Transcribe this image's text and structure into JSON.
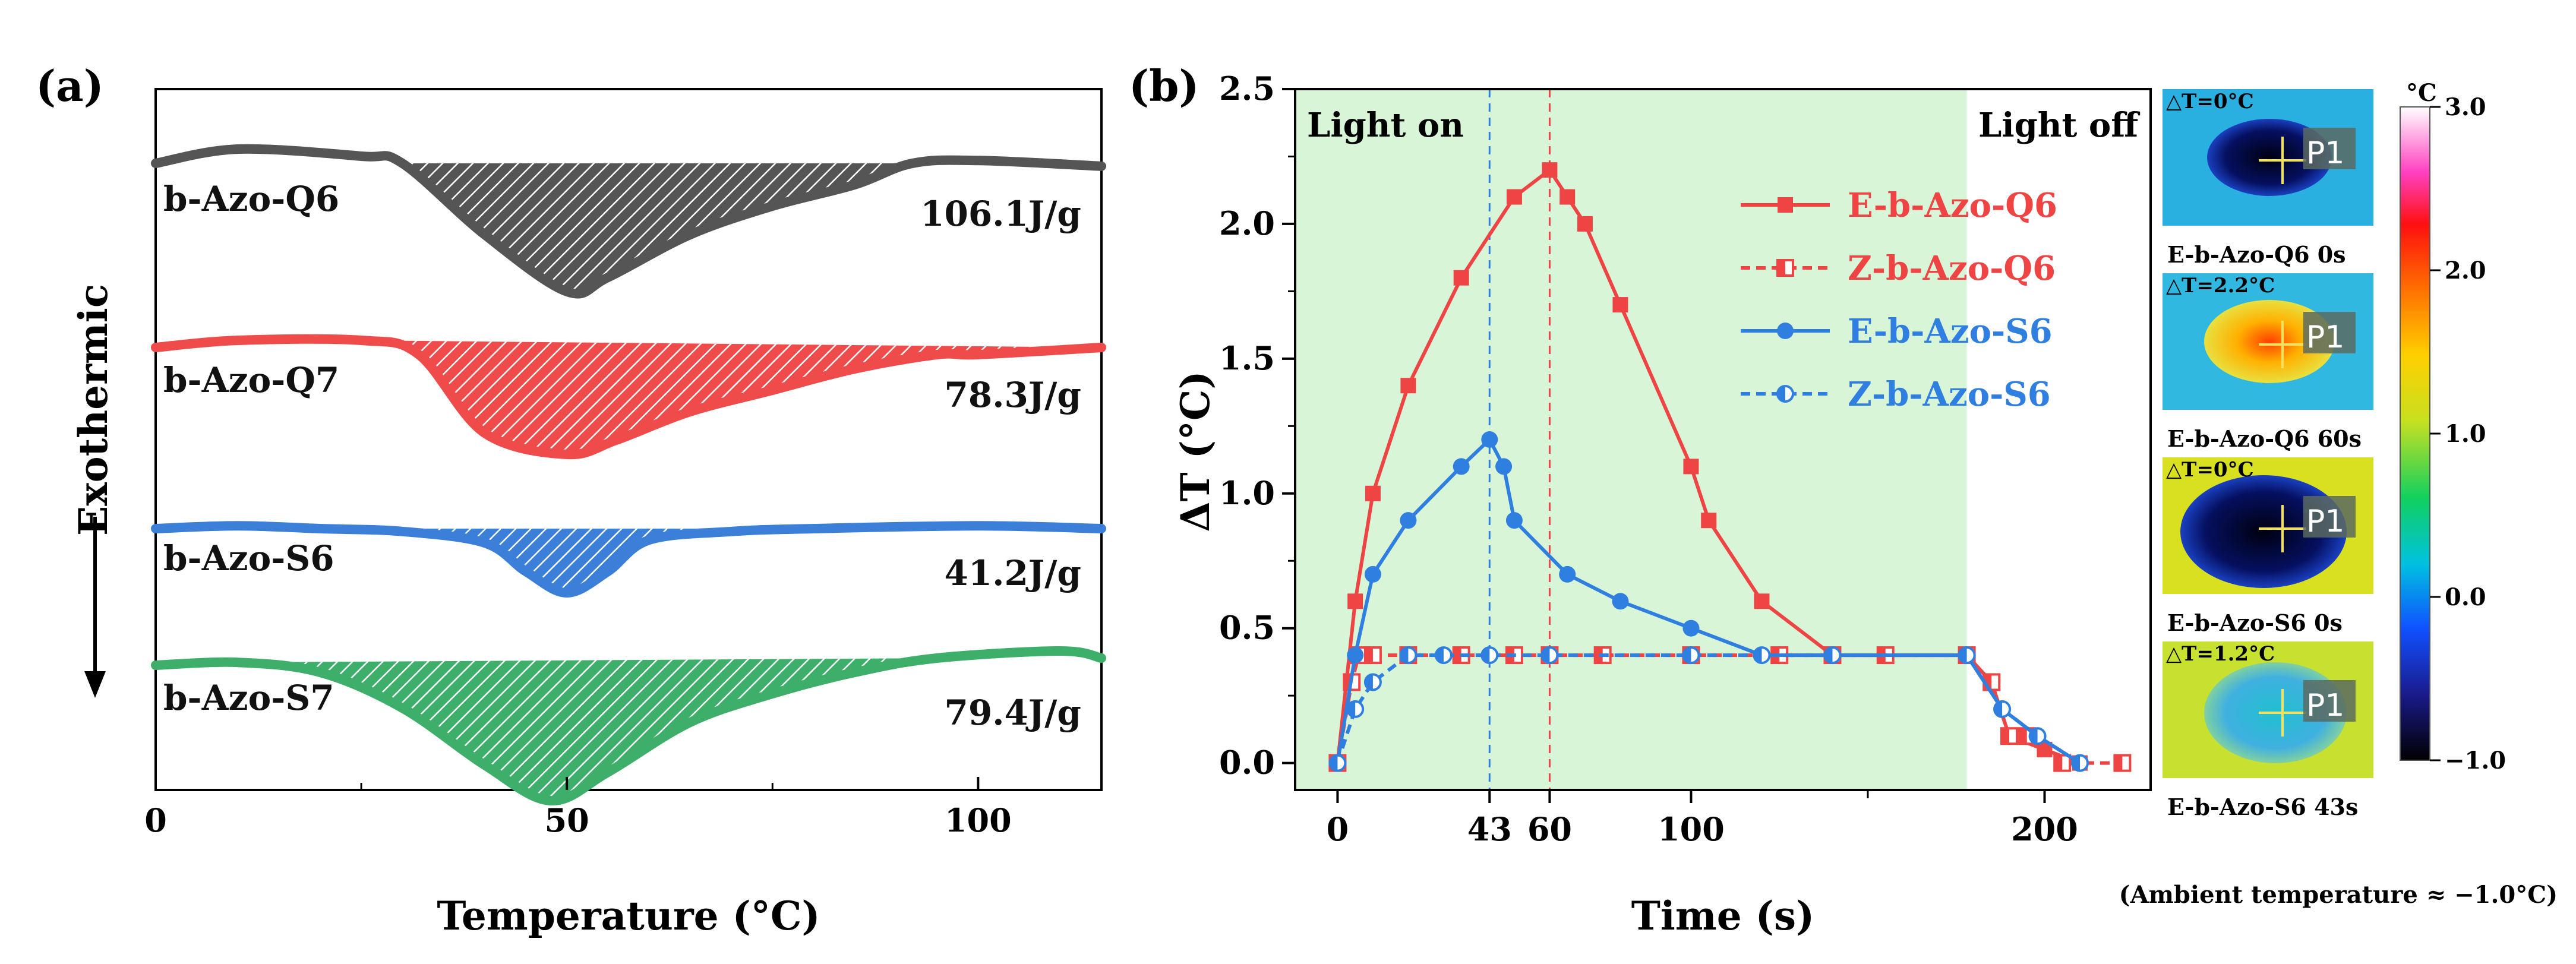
{
  "figure": {
    "footnote": "(Ambient temperature ≈ −1.0°C)"
  },
  "chart_data": [
    {
      "panel": "(a)",
      "type": "line",
      "title": "",
      "xlabel": "Temperature (°C)",
      "ylabel": "Exothermic",
      "xlim": [
        0,
        115
      ],
      "xticks": [
        0,
        50,
        100
      ],
      "xtick_labels": [
        "0",
        "50",
        "100"
      ],
      "series": [
        {
          "name": "b-Azo-Q6",
          "enthalpy_label": "106.1J/g",
          "color": "#555555",
          "x": [
            0,
            10,
            25,
            30,
            40,
            50,
            55,
            65,
            75,
            85,
            92,
            100,
            115
          ],
          "y": [
            0,
            0.1,
            0.05,
            0,
            -0.5,
            -0.9,
            -0.8,
            -0.5,
            -0.3,
            -0.15,
            0,
            0.02,
            -0.02
          ]
        },
        {
          "name": "b-Azo-Q7",
          "enthalpy_label": "78.3J/g",
          "color": "#ef4b4b",
          "x": [
            0,
            10,
            25,
            32,
            40,
            50,
            56,
            65,
            75,
            85,
            95,
            100,
            115
          ],
          "y": [
            0,
            0.05,
            0.05,
            -0.05,
            -0.6,
            -0.75,
            -0.65,
            -0.45,
            -0.3,
            -0.15,
            -0.05,
            -0.05,
            0
          ]
        },
        {
          "name": "b-Azo-S6",
          "enthalpy_label": "41.2J/g",
          "color": "#3b7fd9",
          "x": [
            0,
            10,
            20,
            30,
            40,
            45,
            50,
            55,
            60,
            70,
            80,
            100,
            115
          ],
          "y": [
            0,
            0.02,
            0,
            -0.02,
            -0.1,
            -0.3,
            -0.45,
            -0.3,
            -0.08,
            -0.02,
            0,
            0.02,
            0
          ]
        },
        {
          "name": "b-Azo-S7",
          "enthalpy_label": "79.4J/g",
          "color": "#3eaf6a",
          "x": [
            0,
            10,
            20,
            30,
            40,
            48,
            55,
            65,
            75,
            85,
            95,
            110,
            115
          ],
          "y": [
            0,
            0.02,
            -0.05,
            -0.3,
            -0.7,
            -0.95,
            -0.75,
            -0.4,
            -0.2,
            -0.05,
            0.05,
            0.1,
            0.05
          ]
        }
      ]
    },
    {
      "panel": "(b)",
      "type": "line",
      "title": "",
      "xlabel": "Time (s)",
      "ylabel": "ΔT (°C)",
      "xlim": [
        -12,
        230
      ],
      "ylim": [
        -0.1,
        2.5
      ],
      "xticks": [
        0,
        43,
        60,
        100,
        200
      ],
      "xtick_labels": [
        "0",
        "43",
        "60",
        "100",
        "200"
      ],
      "yticks": [
        0.0,
        0.5,
        1.0,
        1.5,
        2.0,
        2.5
      ],
      "ytick_labels": [
        "0.0",
        "0.5",
        "1.0",
        "1.5",
        "2.0",
        "2.5"
      ],
      "regions": [
        {
          "label": "Light on",
          "from": -12,
          "to": 178
        },
        {
          "label": "Light off",
          "from": 178,
          "to": 230
        }
      ],
      "vlines": [
        43,
        60
      ],
      "series": [
        {
          "name": "E-b-Azo-Q6",
          "color": "#ee4444",
          "dash": false,
          "marker": "square-filled",
          "x": [
            0,
            5,
            10,
            20,
            35,
            50,
            60,
            65,
            70,
            80,
            100,
            105,
            120,
            140,
            178,
            185,
            190,
            200,
            210
          ],
          "y": [
            0,
            0.6,
            1.0,
            1.4,
            1.8,
            2.1,
            2.2,
            2.1,
            2.0,
            1.7,
            1.1,
            0.9,
            0.6,
            0.4,
            0.4,
            0.3,
            0.1,
            0.05,
            0
          ]
        },
        {
          "name": "Z-b-Azo-Q6",
          "color": "#ee4444",
          "dash": true,
          "marker": "square-half",
          "x": [
            0,
            4,
            6,
            10,
            20,
            35,
            50,
            60,
            75,
            100,
            125,
            140,
            155,
            178,
            185,
            190,
            195,
            205,
            222
          ],
          "y": [
            0,
            0.3,
            0.4,
            0.4,
            0.4,
            0.4,
            0.4,
            0.4,
            0.4,
            0.4,
            0.4,
            0.4,
            0.4,
            0.4,
            0.3,
            0.1,
            0.1,
            0,
            0
          ]
        },
        {
          "name": "E-b-Azo-S6",
          "color": "#2f7fe0",
          "dash": false,
          "marker": "circle-filled",
          "x": [
            0,
            5,
            10,
            20,
            35,
            43,
            47,
            50,
            65,
            80,
            100,
            120,
            140,
            178,
            188,
            198,
            210
          ],
          "y": [
            0,
            0.4,
            0.7,
            0.9,
            1.1,
            1.2,
            1.1,
            0.9,
            0.7,
            0.6,
            0.5,
            0.4,
            0.4,
            0.4,
            0.2,
            0.1,
            0
          ]
        },
        {
          "name": "Z-b-Azo-S6",
          "color": "#2f7fe0",
          "dash": true,
          "marker": "circle-half",
          "x": [
            0,
            5,
            10,
            20,
            30,
            43,
            60,
            100,
            120,
            140,
            178,
            188,
            198,
            210
          ],
          "y": [
            0,
            0.2,
            0.3,
            0.4,
            0.4,
            0.4,
            0.4,
            0.4,
            0.4,
            0.4,
            0.4,
            0.2,
            0.1,
            0
          ]
        }
      ]
    }
  ],
  "thermal_images": [
    {
      "delta": "△T=0°C",
      "caption": "E-b-Azo-Q6  0s",
      "marker": "P1"
    },
    {
      "delta": "△T=2.2°C",
      "caption": "E-b-Azo-Q6  60s",
      "marker": "P1"
    },
    {
      "delta": "△T=0°C",
      "caption": "E-b-Azo-S6  0s",
      "marker": "P1"
    },
    {
      "delta": "△T=1.2°C",
      "caption": "E-b-Azo-S6  43s",
      "marker": "P1"
    }
  ],
  "colorbar": {
    "unit": "°C",
    "ticks": [
      "3.0",
      "2.0",
      "1.0",
      "0.0",
      "−1.0"
    ],
    "range": [
      -1.0,
      3.0
    ]
  }
}
